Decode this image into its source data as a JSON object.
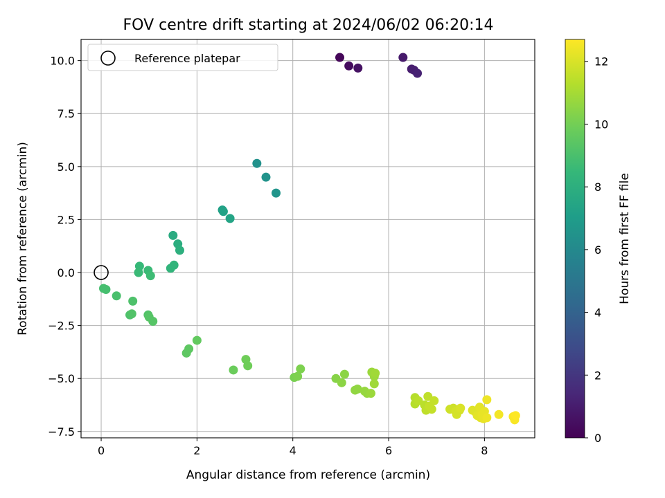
{
  "chart_data": {
    "type": "scatter",
    "title": "FOV centre drift starting at 2024/06/02 06:20:14",
    "xlabel": "Angular distance from reference (arcmin)",
    "ylabel": "Rotation from reference (arcmin)",
    "xlim": [
      -0.42,
      9.05
    ],
    "ylim": [
      -7.8,
      11.0
    ],
    "x_ticks": [
      0,
      2,
      4,
      6,
      8
    ],
    "y_ticks": [
      -7.5,
      -5.0,
      -2.5,
      0.0,
      2.5,
      5.0,
      7.5,
      10.0
    ],
    "grid": true,
    "legend": {
      "position": "upper-left",
      "entries": [
        "Reference platepar"
      ]
    },
    "colorbar": {
      "label": "Hours from first FF file",
      "colormap": "viridis",
      "range": [
        0,
        12.7
      ],
      "ticks": [
        0,
        2,
        4,
        6,
        8,
        10,
        12
      ]
    },
    "reference_point": {
      "x": 0,
      "y": 0
    },
    "series": [
      {
        "points": [
          [
            4.98,
            10.15,
            0.2
          ],
          [
            5.17,
            9.75,
            0.4
          ],
          [
            5.36,
            9.65,
            0.6
          ],
          [
            6.3,
            10.15,
            0.9
          ],
          [
            6.48,
            9.6,
            1.0
          ],
          [
            6.53,
            9.55,
            1.1
          ],
          [
            6.6,
            9.4,
            1.2
          ],
          [
            3.25,
            5.15,
            6.4
          ],
          [
            3.44,
            4.5,
            6.5
          ],
          [
            3.65,
            3.75,
            6.6
          ],
          [
            2.53,
            2.95,
            7.2
          ],
          [
            2.55,
            2.88,
            7.3
          ],
          [
            2.69,
            2.55,
            7.4
          ],
          [
            1.5,
            1.75,
            7.8
          ],
          [
            1.6,
            1.35,
            7.9
          ],
          [
            1.64,
            1.05,
            8.0
          ],
          [
            1.45,
            0.2,
            8.3
          ],
          [
            1.52,
            0.35,
            8.3
          ],
          [
            0.8,
            0.3,
            8.5
          ],
          [
            0.78,
            0.0,
            8.6
          ],
          [
            0.98,
            0.1,
            8.6
          ],
          [
            1.03,
            -0.15,
            8.7
          ],
          [
            0.05,
            -0.75,
            8.9
          ],
          [
            0.1,
            -0.8,
            8.9
          ],
          [
            0.32,
            -1.1,
            9.0
          ],
          [
            0.66,
            -1.35,
            9.1
          ],
          [
            0.6,
            -2.0,
            9.1
          ],
          [
            0.64,
            -1.95,
            9.2
          ],
          [
            0.98,
            -2.0,
            9.2
          ],
          [
            1.0,
            -2.1,
            9.3
          ],
          [
            1.08,
            -2.3,
            9.3
          ],
          [
            1.78,
            -3.8,
            9.5
          ],
          [
            1.83,
            -3.6,
            9.5
          ],
          [
            2.0,
            -3.2,
            9.6
          ],
          [
            2.76,
            -4.6,
            9.8
          ],
          [
            3.02,
            -4.1,
            9.9
          ],
          [
            3.06,
            -4.4,
            9.9
          ],
          [
            4.03,
            -4.95,
            10.1
          ],
          [
            4.1,
            -4.9,
            10.2
          ],
          [
            4.16,
            -4.55,
            10.2
          ],
          [
            4.9,
            -5.0,
            10.4
          ],
          [
            5.02,
            -5.2,
            10.5
          ],
          [
            5.08,
            -4.8,
            10.5
          ],
          [
            5.3,
            -5.55,
            10.6
          ],
          [
            5.35,
            -5.5,
            10.6
          ],
          [
            5.5,
            -5.6,
            10.7
          ],
          [
            5.55,
            -5.7,
            10.7
          ],
          [
            5.63,
            -5.7,
            10.8
          ],
          [
            5.65,
            -4.7,
            10.8
          ],
          [
            5.7,
            -4.9,
            10.8
          ],
          [
            5.72,
            -4.75,
            10.9
          ],
          [
            5.7,
            -5.25,
            10.9
          ],
          [
            6.55,
            -5.9,
            11.3
          ],
          [
            6.55,
            -6.2,
            11.3
          ],
          [
            6.62,
            -6.05,
            11.4
          ],
          [
            6.75,
            -6.25,
            11.4
          ],
          [
            6.78,
            -6.5,
            11.5
          ],
          [
            6.82,
            -5.85,
            11.5
          ],
          [
            6.85,
            -6.3,
            11.6
          ],
          [
            6.9,
            -6.45,
            11.6
          ],
          [
            6.95,
            -6.05,
            11.6
          ],
          [
            7.28,
            -6.45,
            11.8
          ],
          [
            7.35,
            -6.4,
            11.8
          ],
          [
            7.4,
            -6.55,
            11.9
          ],
          [
            7.42,
            -6.7,
            11.9
          ],
          [
            7.48,
            -6.5,
            11.9
          ],
          [
            7.5,
            -6.4,
            12.0
          ],
          [
            7.75,
            -6.5,
            12.1
          ],
          [
            7.82,
            -6.6,
            12.1
          ],
          [
            7.85,
            -6.75,
            12.2
          ],
          [
            7.9,
            -6.35,
            12.2
          ],
          [
            7.92,
            -6.85,
            12.2
          ],
          [
            7.95,
            -6.7,
            12.3
          ],
          [
            7.98,
            -6.9,
            12.3
          ],
          [
            8.0,
            -6.55,
            12.3
          ],
          [
            8.05,
            -6.0,
            12.4
          ],
          [
            8.05,
            -6.85,
            12.4
          ],
          [
            8.3,
            -6.7,
            12.5
          ],
          [
            8.6,
            -6.8,
            12.6
          ],
          [
            8.63,
            -6.95,
            12.6
          ],
          [
            8.65,
            -6.75,
            12.7
          ]
        ]
      }
    ]
  }
}
